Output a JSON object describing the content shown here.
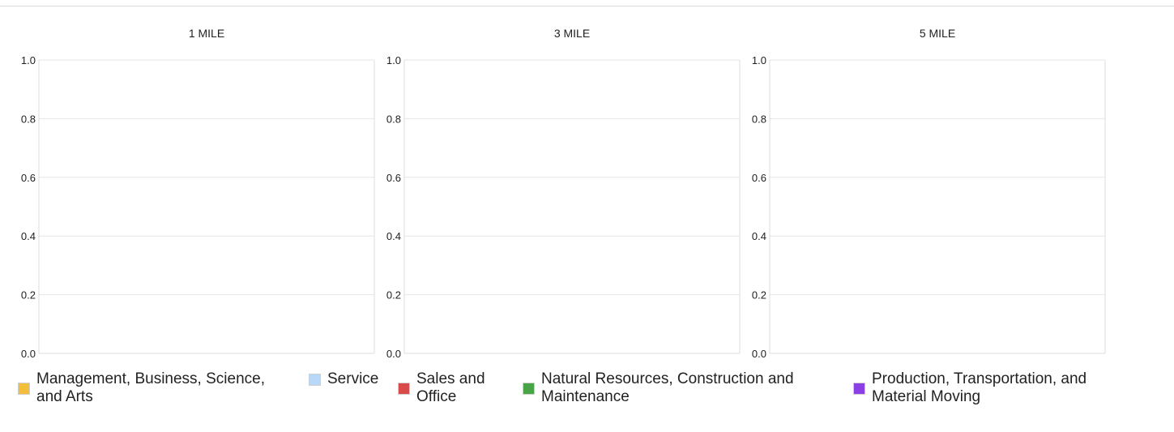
{
  "chart_data": [
    {
      "type": "bar",
      "title": "1 MILE",
      "categories": [],
      "series": [],
      "ylim": [
        0,
        1
      ],
      "yticks": [
        "0.0",
        "0.2",
        "0.4",
        "0.6",
        "0.8",
        "1.0"
      ],
      "grid": true
    },
    {
      "type": "bar",
      "title": "3 MILE",
      "categories": [],
      "series": [],
      "ylim": [
        0,
        1
      ],
      "yticks": [
        "0.0",
        "0.2",
        "0.4",
        "0.6",
        "0.8",
        "1.0"
      ],
      "grid": true
    },
    {
      "type": "bar",
      "title": "5 MILE",
      "categories": [],
      "series": [],
      "ylim": [
        0,
        1
      ],
      "yticks": [
        "0.0",
        "0.2",
        "0.4",
        "0.6",
        "0.8",
        "1.0"
      ],
      "grid": true
    }
  ],
  "legend": {
    "placement": "bottom",
    "items": [
      {
        "label": "Management, Business, Science, and Arts",
        "color": "#f3bf3a"
      },
      {
        "label": "Service",
        "color": "#b7d8f7"
      },
      {
        "label": "Sales and Office",
        "color": "#d94b4b"
      },
      {
        "label": "Natural Resources, Construction and Maintenance",
        "color": "#47a447"
      },
      {
        "label": "Production, Transportation, and Material Moving",
        "color": "#8b40e6"
      }
    ]
  },
  "colors": {
    "grid": "#e6e6e6",
    "axis": "#dddddd",
    "text": "#222222"
  }
}
